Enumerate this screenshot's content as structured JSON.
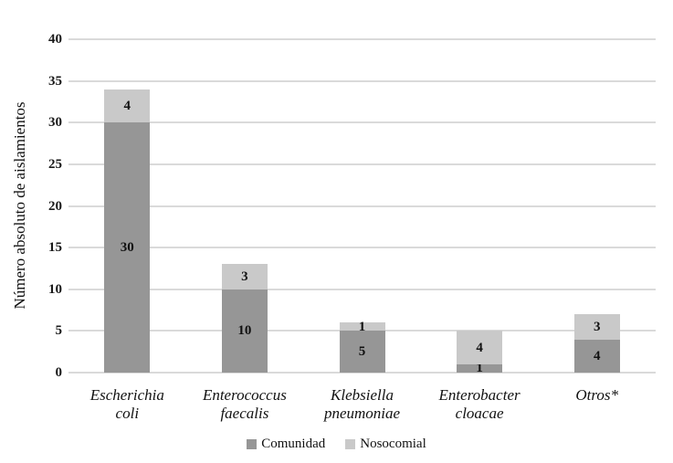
{
  "chart_data": {
    "type": "bar",
    "stacked": true,
    "title": "",
    "xlabel": "",
    "ylabel": "Número absoluto de aislamientos",
    "ylim": [
      0,
      40
    ],
    "ytick_step": 5,
    "grid": true,
    "legend_position": "bottom",
    "categories": [
      "Escherichia coli",
      "Enterococcus faecalis",
      "Klebsiella pneumoniae",
      "Enterobacter cloacae",
      "Otros*"
    ],
    "category_lines": [
      [
        "Escherichia",
        "coli"
      ],
      [
        "Enterococcus",
        "faecalis"
      ],
      [
        "Klebsiella",
        "pneumoniae"
      ],
      [
        "Enterobacter",
        "cloacae"
      ],
      [
        "Otros*"
      ]
    ],
    "series": [
      {
        "name": "Comunidad",
        "color": "#969696",
        "values": [
          30,
          10,
          5,
          1,
          4
        ]
      },
      {
        "name": "Nosocomial",
        "color": "#c9c9c9",
        "values": [
          4,
          3,
          1,
          4,
          3
        ]
      }
    ]
  },
  "colors": {
    "gridline": "#dadada",
    "axis_text": "#1a1a1a",
    "background": "#ffffff"
  }
}
